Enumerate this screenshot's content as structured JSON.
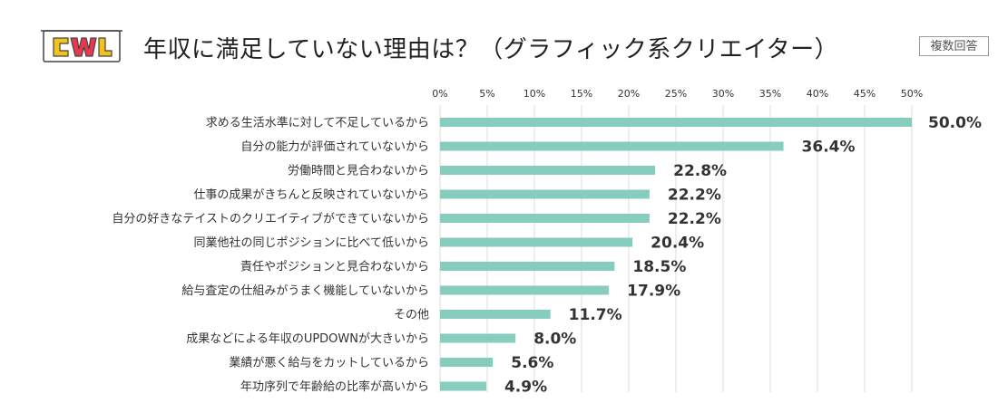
{
  "header": {
    "logo_text": "CWL",
    "title": "年収に満足していない理由は？（グラフィック系クリエイター）",
    "badge": "複数回答"
  },
  "colors": {
    "bar": "#86cdbd",
    "grid": "#dddddd",
    "logo_yellow": "#f2c31b",
    "logo_red": "#e8384f",
    "logo_outline": "#444444"
  },
  "chart_data": {
    "type": "bar",
    "orientation": "horizontal",
    "title": "年収に満足していない理由は？（グラフィック系クリエイター）",
    "xlim": [
      0,
      50
    ],
    "ticks": [
      "0%",
      "5%",
      "10%",
      "15%",
      "20%",
      "25%",
      "30%",
      "35%",
      "40%",
      "45%",
      "50%"
    ],
    "categories": [
      "求める生活水準に対して不足しているから",
      "自分の能力が評価されていないから",
      "労働時間と見合わないから",
      "仕事の成果がきちんと反映されていないから",
      "自分の好きなテイストのクリエイティブができていないから",
      "同業他社の同じポジションに比べて低いから",
      "責任やポジションと見合わないから",
      "給与査定の仕組みがうまく機能していないから",
      "その他",
      "成果などによる年収のUPDOWNが大きいから",
      "業績が悪く給与をカットしているから",
      "年功序列で年齢給の比率が高いから"
    ],
    "values": [
      50.0,
      36.4,
      22.8,
      22.2,
      22.2,
      20.4,
      18.5,
      17.9,
      11.7,
      8.0,
      5.6,
      4.9
    ],
    "value_labels": [
      "50.0%",
      "36.4%",
      "22.8%",
      "22.2%",
      "22.2%",
      "20.4%",
      "18.5%",
      "17.9%",
      "11.7%",
      "8.0%",
      "5.6%",
      "4.9%"
    ]
  }
}
